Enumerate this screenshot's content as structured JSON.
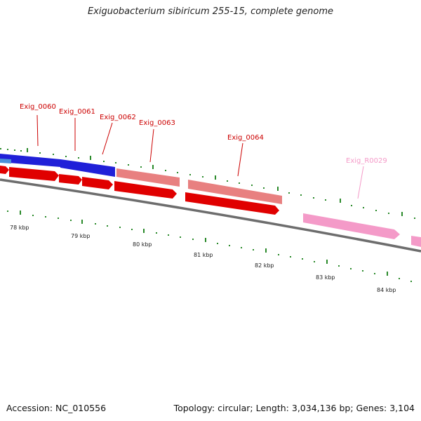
{
  "title": "Exiguobacterium sibiricum 255-15, complete genome",
  "footer": {
    "accession": "Accession: NC_010556",
    "summary": "Topology: circular; Length: 3,034,136 bp; Genes: 3,104"
  },
  "colors": {
    "cds_forward_top": "#1f1fd6",
    "cds_reverse": "#e00000",
    "pseudo_gene": "#e88080",
    "rna_gene": "#f49ac8",
    "backbone": "#777777",
    "tick": "#2a8a2a",
    "gene_label": "#cc0000",
    "rna_label": "#f49ac8"
  },
  "gene_labels": [
    {
      "name": "Exig_0060",
      "type": "cds"
    },
    {
      "name": "Exig_0061",
      "type": "cds"
    },
    {
      "name": "Exig_0062",
      "type": "cds"
    },
    {
      "name": "Exig_0063",
      "type": "cds"
    },
    {
      "name": "Exig_0064",
      "type": "cds"
    },
    {
      "name": "Exig_R0029",
      "type": "rna"
    }
  ],
  "kbp_labels": [
    "78 kbp",
    "79 kbp",
    "80 kbp",
    "81 kbp",
    "82 kbp",
    "83 kbp",
    "84 kbp"
  ]
}
